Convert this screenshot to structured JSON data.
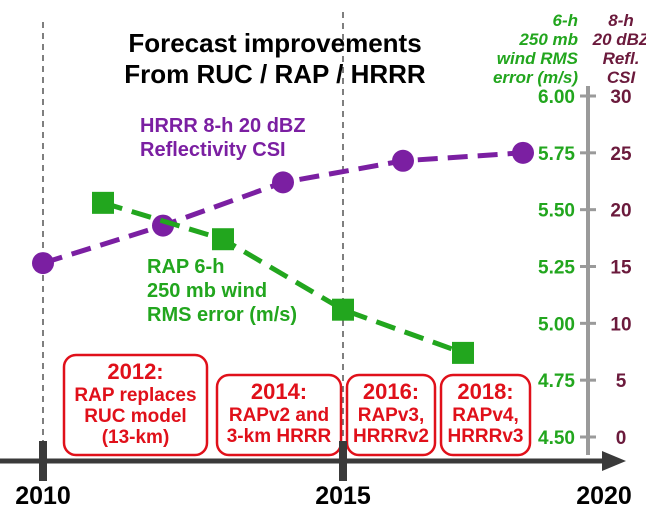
{
  "chart_data": {
    "type": "line",
    "title_lines": [
      "Forecast improvements",
      "From RUC / RAP / HRRR"
    ],
    "x_axis": {
      "ticks": [
        "2010",
        "2015",
        "2020"
      ],
      "range": [
        2010,
        2020
      ]
    },
    "y_axes": {
      "left_green": {
        "label_lines": [
          "6-h",
          "250 mb",
          "wind RMS",
          "error (m/s)"
        ],
        "ticks": [
          "6.00",
          "5.75",
          "5.50",
          "5.25",
          "5.00",
          "4.75",
          "4.50"
        ],
        "range": [
          4.5,
          6.0
        ],
        "color": "#22a61e"
      },
      "right_purple": {
        "label_lines": [
          "8-h",
          "20 dBZ",
          "Refl.",
          "CSI"
        ],
        "ticks": [
          "30",
          "25",
          "20",
          "15",
          "10",
          "5",
          "0"
        ],
        "range": [
          0,
          30
        ],
        "color": "#6b1a3c"
      }
    },
    "series": [
      {
        "name_lines": [
          "HRRR 8-h 20 dBZ",
          "Reflectivity CSI"
        ],
        "axis": "right",
        "color": "#7b1fa2",
        "marker": "circle",
        "x": [
          2010,
          2012,
          2014,
          2016,
          2018
        ],
        "y": [
          15.3,
          18.6,
          22.4,
          24.3,
          25.0
        ]
      },
      {
        "name_lines": [
          "RAP 6-h",
          "250 mb wind",
          "RMS error (m/s)"
        ],
        "axis": "left",
        "color": "#22a61e",
        "marker": "square",
        "x": [
          2011,
          2013,
          2015,
          2017
        ],
        "y": [
          5.53,
          5.37,
          5.06,
          4.87
        ]
      }
    ],
    "annotations": [
      {
        "year": "2012:",
        "lines": [
          "RAP replaces",
          "RUC model",
          "(13-km)"
        ]
      },
      {
        "year": "2014:",
        "lines": [
          "RAPv2 and",
          "3-km HRRR"
        ]
      },
      {
        "year": "2016:",
        "lines": [
          "RAPv3,",
          "HRRRv2"
        ]
      },
      {
        "year": "2018:",
        "lines": [
          "RAPv4,",
          "HRRRv3"
        ]
      }
    ],
    "vertical_reference_lines": [
      2010,
      2015
    ],
    "grid": false
  }
}
